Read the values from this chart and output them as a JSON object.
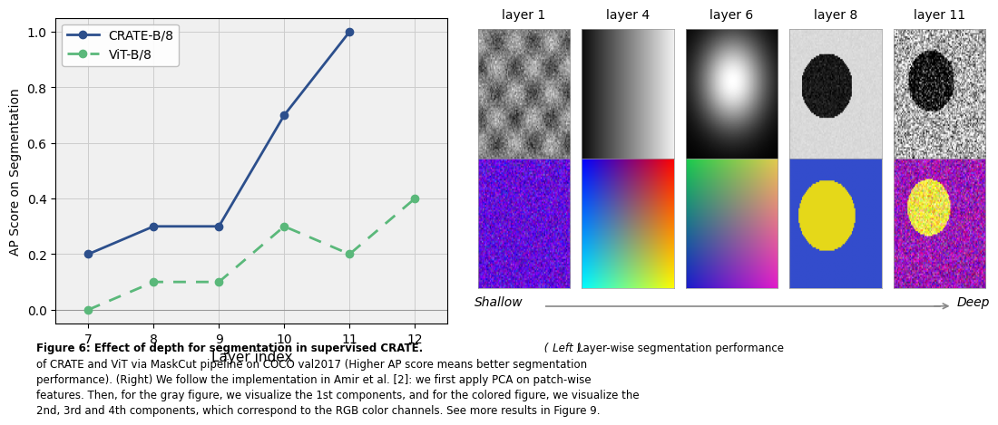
{
  "crate_x": [
    7,
    8,
    9,
    10,
    11,
    12
  ],
  "crate_y": [
    0.2,
    0.3,
    0.3,
    0.7,
    1.0,
    null
  ],
  "vit_x": [
    7,
    8,
    9,
    10,
    11,
    12
  ],
  "vit_y": [
    0.0,
    0.1,
    0.1,
    0.3,
    0.2,
    0.4
  ],
  "crate_color": "#2c4f8c",
  "vit_color": "#5ab87a",
  "crate_label": "CRATE-B/8",
  "vit_label": "ViT-B/8",
  "xlabel": "Layer index",
  "ylabel": "AP Score on Segmentation",
  "xlim": [
    6.5,
    12.5
  ],
  "ylim": [
    -0.05,
    1.05
  ],
  "yticks": [
    0.0,
    0.2,
    0.4,
    0.6,
    0.8,
    1.0
  ],
  "xticks": [
    7,
    8,
    9,
    10,
    11,
    12
  ],
  "layer_labels": [
    "layer 1",
    "layer 4",
    "layer 6",
    "layer 8",
    "layer 11"
  ],
  "shallow_label": "Shallow",
  "deep_label": "Deep",
  "bg_color": "#ffffff",
  "plot_bg_color": "#f0f0f0",
  "grid_color": "#cccccc",
  "caption_bold": "Figure 6: Effect of depth for segmentation in supervised CRATE.",
  "caption_line1": " (Left) Layer-wise segmentation performance",
  "caption_line2": "of CRATE and ViT via MaskCut pipeline on COCO val2017 (Higher AP score means better segmentation",
  "caption_line3": "performance). (Right) We follow the implementation in Amir et al. [2]: we first apply PCA on patch-wise",
  "caption_line4": "features. Then, for the gray figure, we visualize the 1st components, and for the colored figure, we visualize the",
  "caption_line5": "2nd, 3rd and 4th components, which correspond to the RGB color channels. See more results in Figure 9."
}
